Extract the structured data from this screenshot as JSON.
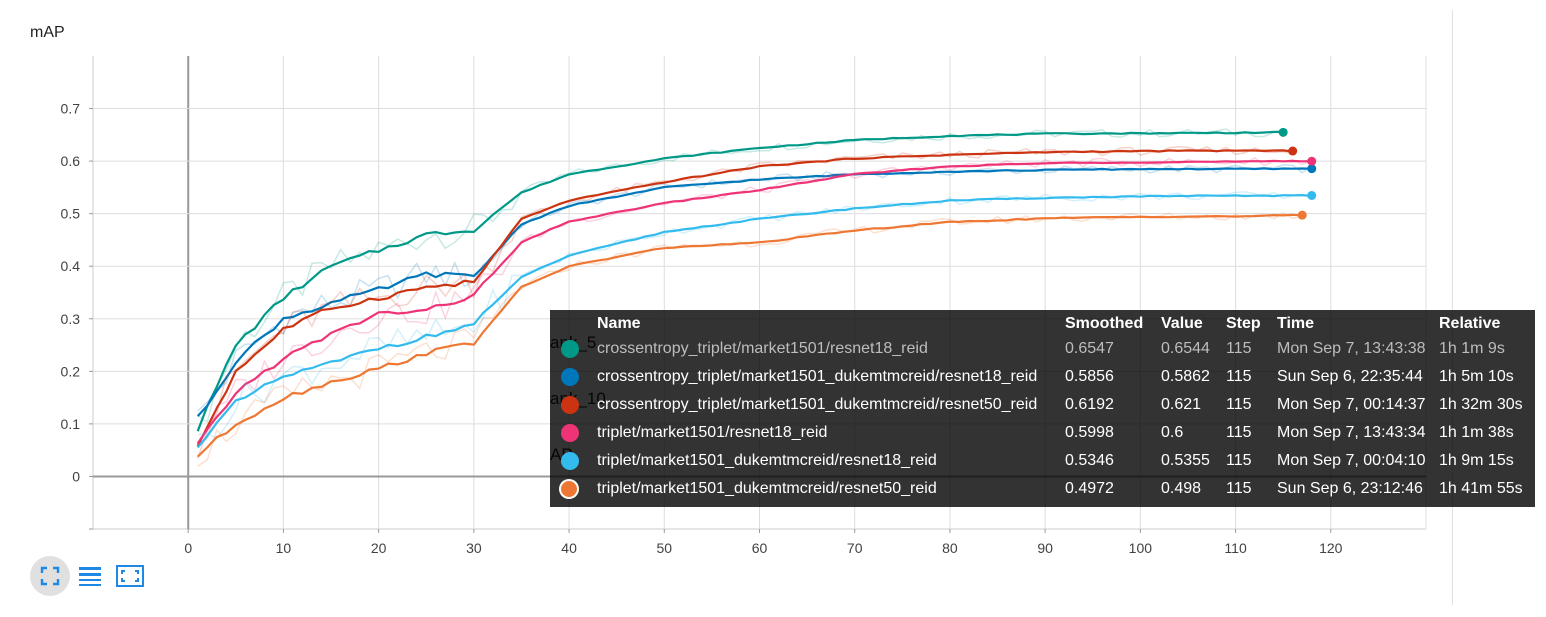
{
  "chart_data": {
    "type": "line",
    "title": "mAP",
    "xlabel": "",
    "ylabel": "",
    "xlim": [
      -10,
      130
    ],
    "ylim": [
      -0.1,
      0.8
    ],
    "x_ticks": [
      0,
      10,
      20,
      30,
      40,
      50,
      60,
      70,
      80,
      90,
      100,
      110,
      120
    ],
    "y_ticks": [
      0,
      0.1,
      0.2,
      0.3,
      0.4,
      0.5,
      0.6,
      0.7
    ],
    "grid": true,
    "legend": "tooltip",
    "series": [
      {
        "name": "crossentropy_triplet/market1501/resnet18_reid",
        "color": "#009988",
        "x": [
          1,
          5,
          10,
          15,
          20,
          25,
          30,
          35,
          40,
          50,
          60,
          70,
          80,
          90,
          100,
          110,
          115
        ],
        "values": [
          0.09,
          0.25,
          0.34,
          0.4,
          0.43,
          0.46,
          0.47,
          0.54,
          0.575,
          0.605,
          0.625,
          0.64,
          0.648,
          0.652,
          0.653,
          0.654,
          0.6547
        ]
      },
      {
        "name": "crossentropy_triplet/market1501_dukemtmcreid/resnet18_reid",
        "color": "#0077bb",
        "x": [
          1,
          5,
          10,
          15,
          20,
          25,
          30,
          35,
          40,
          50,
          60,
          70,
          80,
          90,
          100,
          110,
          118
        ],
        "values": [
          0.11,
          0.22,
          0.3,
          0.33,
          0.355,
          0.385,
          0.38,
          0.48,
          0.515,
          0.55,
          0.565,
          0.575,
          0.58,
          0.583,
          0.585,
          0.585,
          0.5856
        ]
      },
      {
        "name": "crossentropy_triplet/market1501_dukemtmcreid/resnet50_reid",
        "color": "#cc3311",
        "x": [
          1,
          5,
          10,
          15,
          20,
          25,
          30,
          35,
          40,
          50,
          60,
          70,
          80,
          90,
          100,
          110,
          116
        ],
        "values": [
          0.06,
          0.2,
          0.28,
          0.32,
          0.34,
          0.36,
          0.37,
          0.49,
          0.525,
          0.56,
          0.59,
          0.605,
          0.612,
          0.617,
          0.619,
          0.62,
          0.6192
        ]
      },
      {
        "name": "triplet/market1501/resnet18_reid",
        "color": "#ee3377",
        "x": [
          1,
          5,
          10,
          15,
          20,
          25,
          30,
          35,
          40,
          50,
          60,
          70,
          80,
          90,
          100,
          110,
          118
        ],
        "values": [
          0.06,
          0.16,
          0.225,
          0.27,
          0.31,
          0.315,
          0.345,
          0.445,
          0.485,
          0.52,
          0.545,
          0.575,
          0.59,
          0.596,
          0.598,
          0.599,
          0.5998
        ]
      },
      {
        "name": "triplet/market1501_dukemtmcreid/resnet18_reid",
        "color": "#33bbee",
        "x": [
          1,
          5,
          10,
          15,
          20,
          25,
          30,
          35,
          40,
          50,
          60,
          70,
          80,
          90,
          100,
          110,
          118
        ],
        "values": [
          0.06,
          0.14,
          0.19,
          0.215,
          0.245,
          0.265,
          0.29,
          0.38,
          0.42,
          0.465,
          0.49,
          0.51,
          0.525,
          0.53,
          0.533,
          0.534,
          0.5346
        ]
      },
      {
        "name": "triplet/market1501_dukemtmcreid/resnet50_reid",
        "color": "#ee7733",
        "x": [
          1,
          5,
          10,
          15,
          20,
          25,
          30,
          35,
          40,
          50,
          60,
          70,
          80,
          90,
          100,
          110,
          117
        ],
        "values": [
          0.04,
          0.1,
          0.15,
          0.18,
          0.205,
          0.235,
          0.255,
          0.36,
          0.4,
          0.435,
          0.445,
          0.468,
          0.484,
          0.491,
          0.494,
          0.495,
          0.4972
        ]
      }
    ],
    "tooltip": {
      "headers": [
        "Name",
        "Smoothed",
        "Value",
        "Step",
        "Time",
        "Relative"
      ],
      "rows": [
        {
          "name": "crossentropy_triplet/market1501/resnet18_reid",
          "smoothed": "0.6547",
          "value": "0.6544",
          "step": "115",
          "time": "Mon Sep 7, 13:43:38",
          "relative": "1h 1m 9s",
          "color": "#009988",
          "muted": true,
          "selected": false
        },
        {
          "name": "crossentropy_triplet/market1501_dukemtmcreid/resnet18_reid",
          "smoothed": "0.5856",
          "value": "0.5862",
          "step": "115",
          "time": "Sun Sep 6, 22:35:44",
          "relative": "1h 5m 10s",
          "color": "#0077bb",
          "muted": false,
          "selected": false
        },
        {
          "name": "crossentropy_triplet/market1501_dukemtmcreid/resnet50_reid",
          "smoothed": "0.6192",
          "value": "0.621",
          "step": "115",
          "time": "Mon Sep 7, 00:14:37",
          "relative": "1h 32m 30s",
          "color": "#cc3311",
          "muted": false,
          "selected": false
        },
        {
          "name": "triplet/market1501/resnet18_reid",
          "smoothed": "0.5998",
          "value": "0.6",
          "step": "115",
          "time": "Mon Sep 7, 13:43:34",
          "relative": "1h 1m 38s",
          "color": "#ee3377",
          "muted": false,
          "selected": false
        },
        {
          "name": "triplet/market1501_dukemtmcreid/resnet18_reid",
          "smoothed": "0.5346",
          "value": "0.5355",
          "step": "115",
          "time": "Mon Sep 7, 00:04:10",
          "relative": "1h 9m 15s",
          "color": "#33bbee",
          "muted": false,
          "selected": false
        },
        {
          "name": "triplet/market1501_dukemtmcreid/resnet50_reid",
          "smoothed": "0.4972",
          "value": "0.498",
          "step": "115",
          "time": "Sun Sep 6, 23:12:46",
          "relative": "1h 41m 55s",
          "color": "#ee7733",
          "muted": false,
          "selected": true
        }
      ]
    },
    "behind_labels": [
      "ank_5",
      "ank_10",
      "AP"
    ]
  },
  "toolbar": {
    "buttons": [
      {
        "icon": "fit-to-screen-icon",
        "active": true
      },
      {
        "icon": "list-icon",
        "active": false
      },
      {
        "icon": "expand-icon",
        "active": false
      }
    ]
  }
}
